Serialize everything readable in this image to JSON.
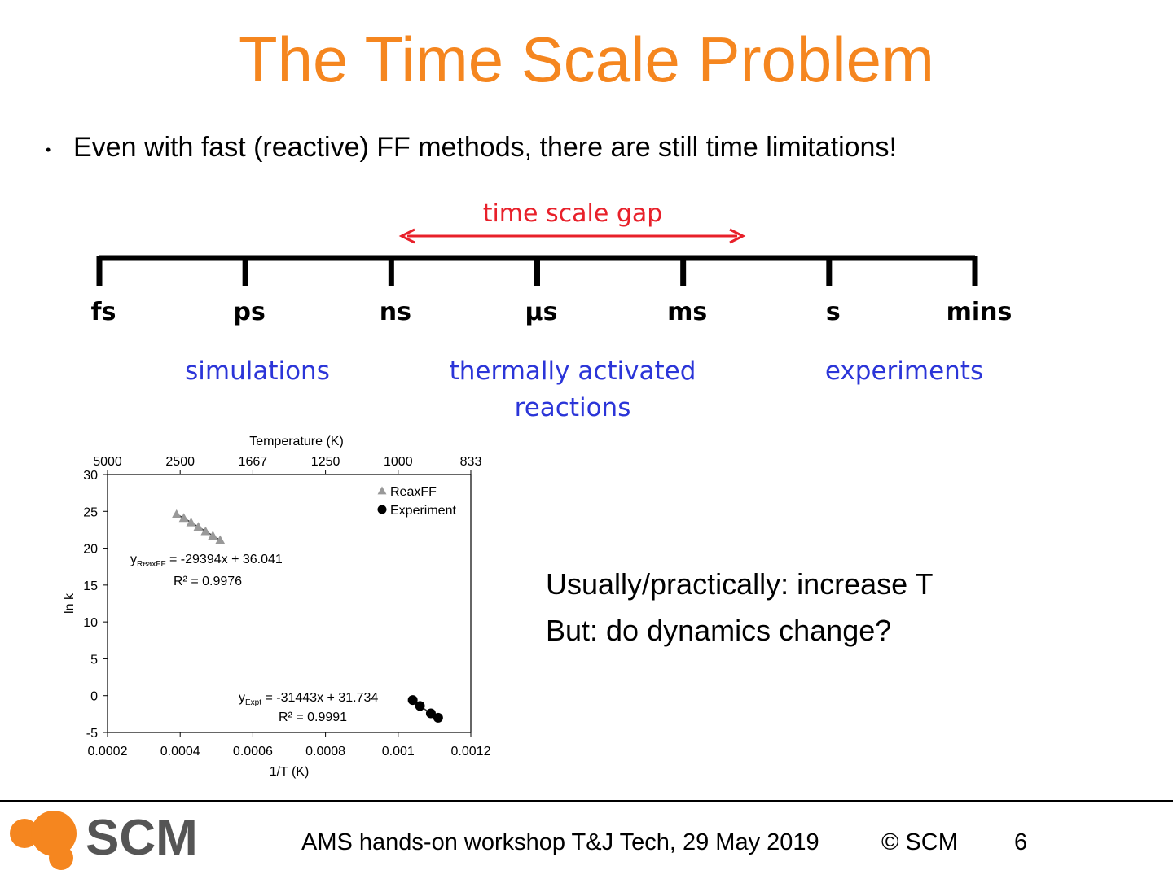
{
  "slide": {
    "title": "The Time Scale Problem",
    "bullet": "Even with fast (reactive) FF methods, there are still time limitations!"
  },
  "timeline": {
    "gap_label": "time scale gap",
    "units": [
      "fs",
      "ps",
      "ns",
      "µs",
      "ms",
      "s",
      "mins"
    ],
    "groups": [
      [
        "simulations"
      ],
      [
        "thermally activated",
        "reactions"
      ],
      [
        "experiments"
      ]
    ]
  },
  "notes": [
    "Usually/practically: increase T",
    "But: do dynamics change?"
  ],
  "footer": {
    "logo": "SCM",
    "event": "AMS hands-on workshop T&J Tech, 29 May 2019",
    "copyright": "© SCM",
    "page": "6"
  },
  "chart_data": {
    "type": "scatter",
    "x_label": "1/T (K)",
    "y_label": "ln k",
    "x2_label": "Temperature (K)",
    "xlim": [
      0.0002,
      0.0012
    ],
    "xticks": [
      0.0002,
      0.0004,
      0.0006,
      0.0008,
      0.001,
      0.0012
    ],
    "x2ticks": [
      {
        "value": 0.0002,
        "label": "5000"
      },
      {
        "value": 0.0004,
        "label": "2500"
      },
      {
        "value": 0.0006,
        "label": "1667"
      },
      {
        "value": 0.0008,
        "label": "1250"
      },
      {
        "value": 0.001,
        "label": "1000"
      },
      {
        "value": 0.0012,
        "label": "833"
      }
    ],
    "ylim": [
      -5,
      30
    ],
    "yticks": [
      -5,
      0,
      5,
      10,
      15,
      20,
      25,
      30
    ],
    "series": [
      {
        "name": "ReaxFF",
        "color": "#999999",
        "marker": "triangle",
        "x": [
          0.00039,
          0.00041,
          0.00043,
          0.00045,
          0.00047,
          0.00049,
          0.00051
        ],
        "values": [
          24.6,
          24.1,
          23.5,
          22.9,
          22.3,
          21.7,
          21.1
        ]
      },
      {
        "name": "Experiment",
        "color": "#000000",
        "marker": "circle",
        "x": [
          0.00104,
          0.00106,
          0.00109,
          0.00111
        ],
        "values": [
          -0.6,
          -1.4,
          -2.4,
          -3.0
        ]
      }
    ],
    "annotations": [
      {
        "y": "y",
        "sub": "ReaxFF",
        "eq": " = -29394x + 36.041",
        "r2": "R² = 0.9976"
      },
      {
        "y": "y",
        "sub": "Expt",
        "eq": " = -31443x + 31.734",
        "r2": "R² = 0.9991"
      }
    ]
  }
}
